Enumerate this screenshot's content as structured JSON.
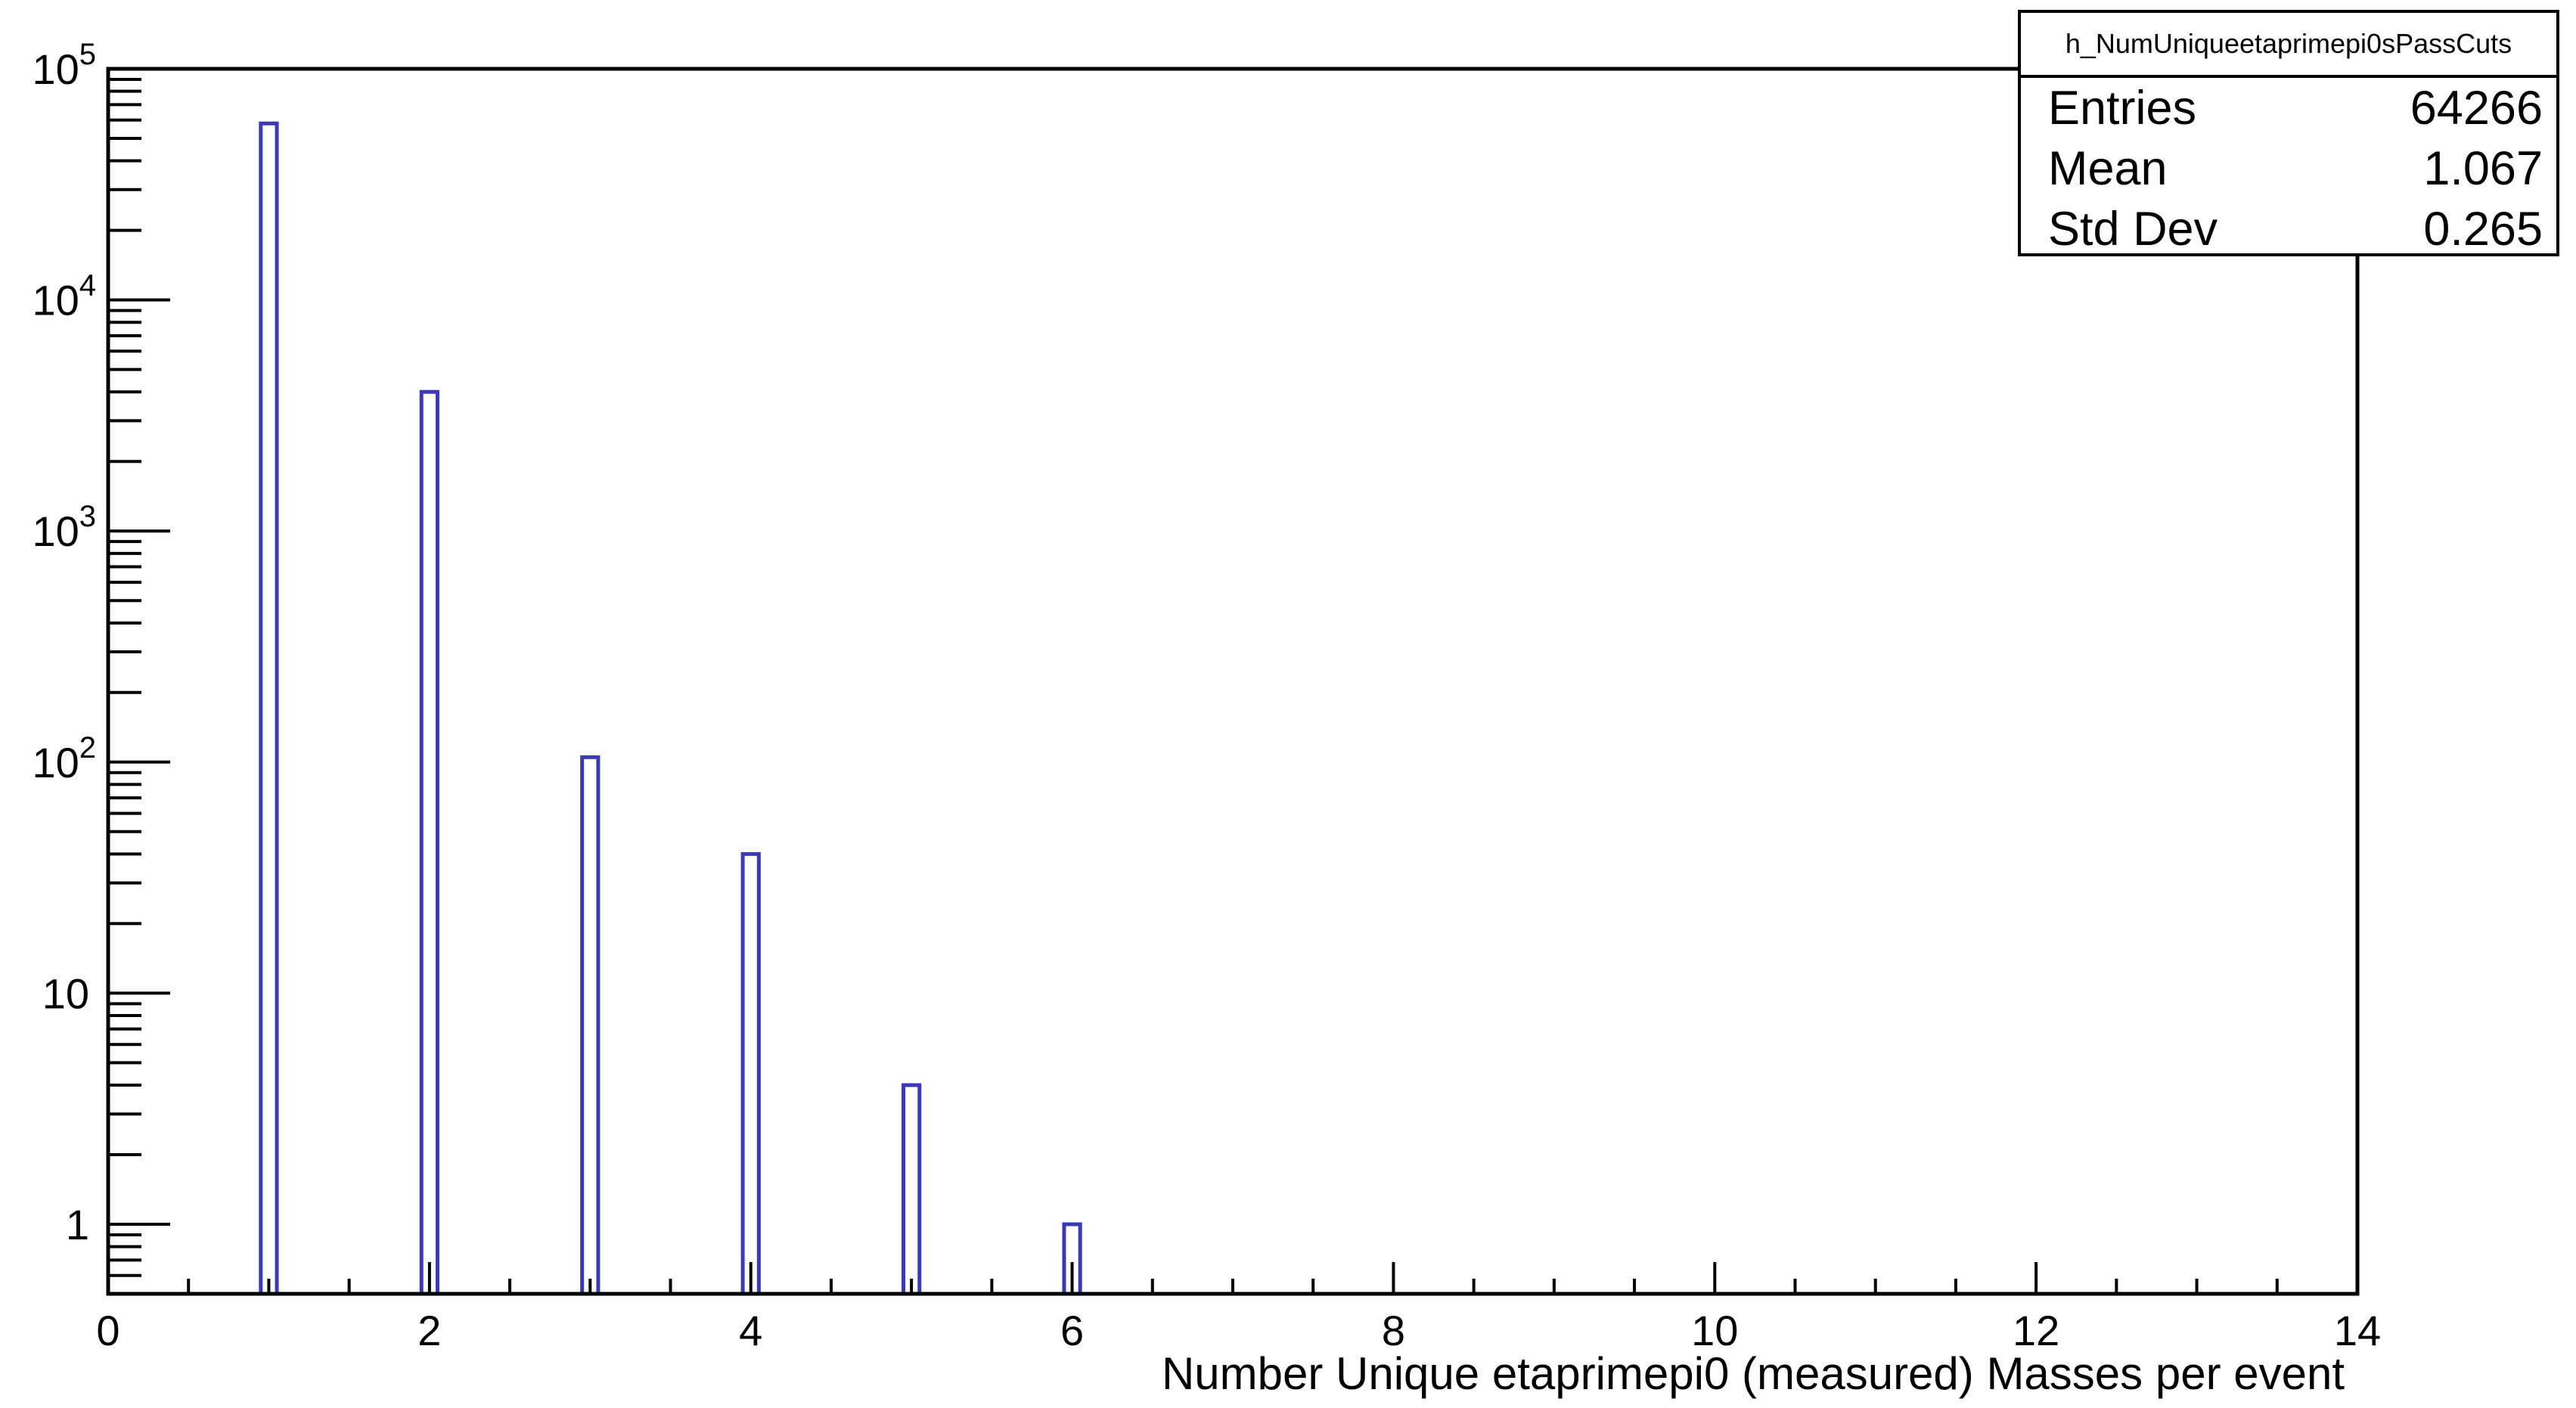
{
  "chart_data": {
    "type": "bar",
    "title": "",
    "xlabel": "Number Unique etaprimepi0 (measured) Masses per event",
    "ylabel": "",
    "x": [
      1,
      2,
      3,
      4,
      5,
      6
    ],
    "values": [
      58000,
      4000,
      105,
      40,
      4,
      1
    ],
    "bin_width": 0.1,
    "xlim": [
      0,
      14
    ],
    "ylim": [
      0.5,
      100000
    ],
    "y_scale": "log",
    "x_ticks": [
      "0",
      "2",
      "4",
      "6",
      "8",
      "10",
      "12",
      "14"
    ],
    "y_ticks": [
      "1",
      "10",
      "10^2",
      "10^3",
      "10^4",
      "10^5"
    ],
    "grid": false,
    "line_color": "#3a3ab8",
    "stats_box": {
      "name": "h_NumUniqueetaprimepi0sPassCuts",
      "rows": [
        {
          "label": "Entries",
          "value": "64266"
        },
        {
          "label": "Mean",
          "value": "1.067"
        },
        {
          "label": "Std Dev",
          "value": "0.265"
        }
      ],
      "position": "top-right"
    }
  }
}
